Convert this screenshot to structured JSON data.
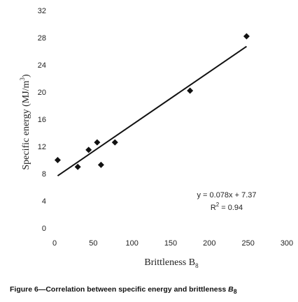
{
  "chart_data": {
    "type": "scatter",
    "xlabel": "Brittleness B",
    "xlabel_sub": "8",
    "ylabel": "Specific energy (MJ/m",
    "ylabel_sup": "3",
    "ylabel_end": ")",
    "xlim": [
      0,
      300
    ],
    "ylim": [
      0,
      32
    ],
    "xticks": [
      0,
      50,
      100,
      150,
      200,
      250,
      300
    ],
    "yticks": [
      0,
      4,
      8,
      12,
      16,
      20,
      24,
      28,
      32
    ],
    "grid": false,
    "series": [
      {
        "marker": "diamond",
        "color": "#111111",
        "points": [
          {
            "x": 4,
            "y": 10.0
          },
          {
            "x": 30,
            "y": 9.0
          },
          {
            "x": 44,
            "y": 11.5
          },
          {
            "x": 55,
            "y": 12.6
          },
          {
            "x": 60,
            "y": 9.3
          },
          {
            "x": 78,
            "y": 12.6
          },
          {
            "x": 175,
            "y": 20.2
          },
          {
            "x": 248,
            "y": 28.2
          }
        ]
      }
    ],
    "trendline": {
      "slope": 0.078,
      "intercept": 7.37,
      "x_start": 4,
      "x_end": 248,
      "color": "#111111"
    },
    "annotation": {
      "equation": "y = 0.078x + 7.37",
      "r2_label": "R",
      "r2_sup": "2",
      "r2_value": " = 0.94"
    }
  },
  "caption": {
    "prefix": "Figure 6—Correlation between specific energy and brittleness ",
    "symbol": "B",
    "symbol_sub": "8"
  }
}
